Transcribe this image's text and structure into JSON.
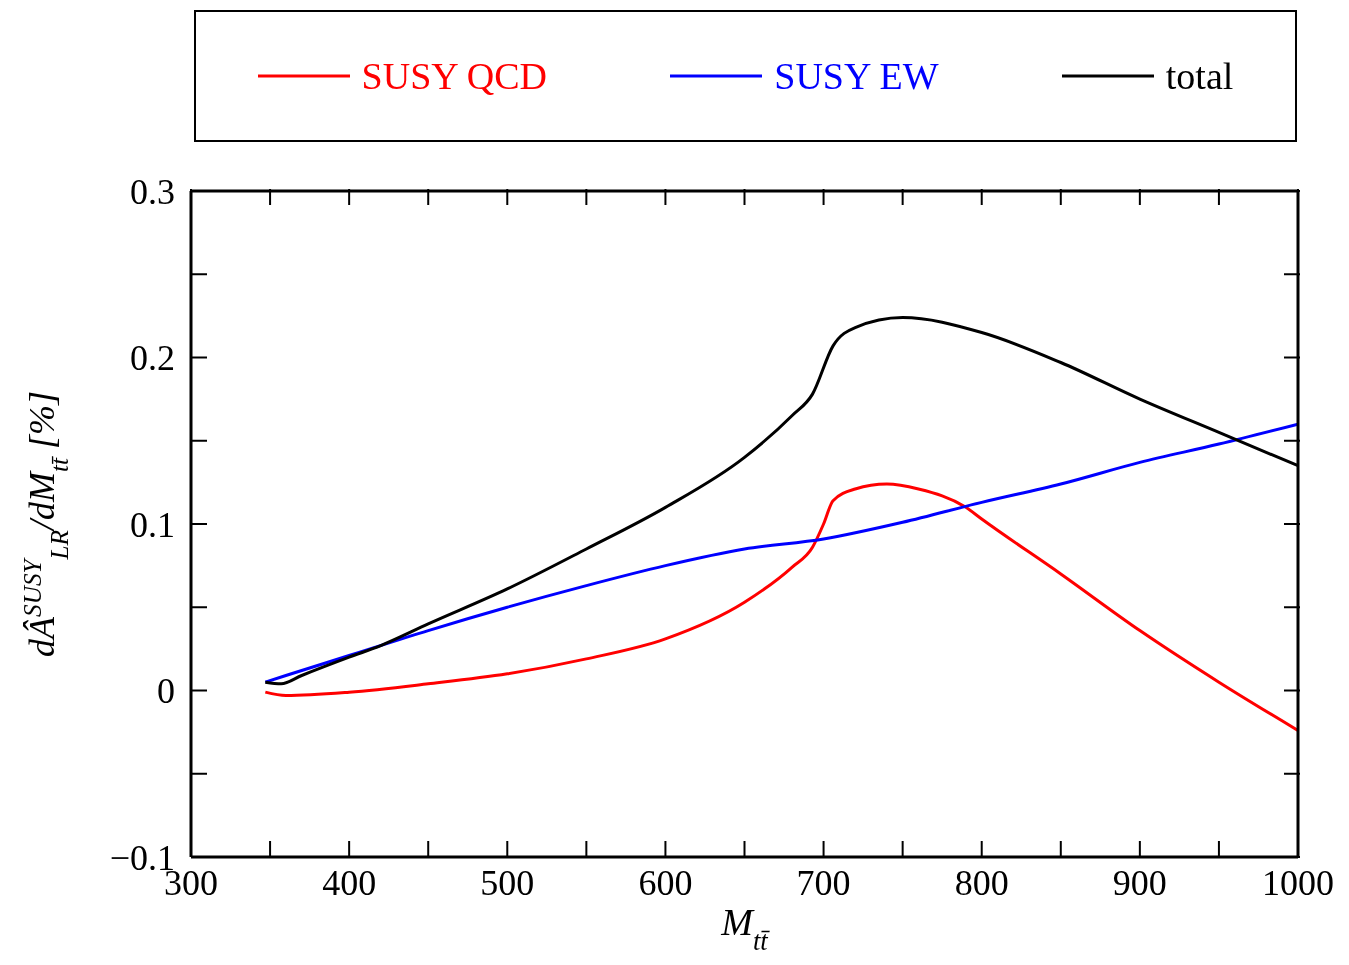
{
  "chart_data": {
    "type": "line",
    "xlabel": "M$_{tt̄}$",
    "ylabel": "dÂ$^{SUSY}$$_{LR}$/dM$_{tt̄}$ [%]",
    "xlim": [
      300,
      1000
    ],
    "xticks": [
      300,
      {
        "value": 350,
        "label": null
      },
      400,
      {
        "value": 450,
        "label": null
      },
      500,
      {
        "value": 550,
        "label": null
      },
      600,
      {
        "value": 650,
        "label": null
      },
      700,
      {
        "value": 750,
        "label": null
      },
      800,
      {
        "value": 850,
        "label": null
      },
      900,
      {
        "value": 950,
        "label": null
      },
      1000
    ],
    "ylim": [
      -0.1,
      0.3
    ],
    "yticks": [
      {
        "value": -0.1,
        "label": "−0.1"
      },
      {
        "value": -0.05,
        "label": null
      },
      0,
      {
        "value": 0.05,
        "label": null
      },
      0.1,
      {
        "value": 0.15,
        "label": null
      },
      0.2,
      {
        "value": 0.25,
        "label": null
      },
      0.3
    ],
    "legend": "top",
    "line_style": "solid",
    "series": [
      {
        "name": "SUSY QCD",
        "color": "#ff0000",
        "x": [
          347,
          360,
          400,
          450,
          500,
          550,
          600,
          650,
          680,
          693,
          700,
          706,
          720,
          740,
          760,
          790,
          800,
          850,
          900,
          950,
          1000
        ],
        "values": [
          -0.001,
          -0.003,
          -0.001,
          0.004,
          0.01,
          0.019,
          0.031,
          0.053,
          0.074,
          0.086,
          0.1,
          0.114,
          0.121,
          0.124,
          0.121,
          0.11,
          0.103,
          0.07,
          0.036,
          0.005,
          -0.024
        ]
      },
      {
        "name": "SUSY EW",
        "color": "#0000ff",
        "x": [
          347,
          360,
          400,
          450,
          500,
          550,
          600,
          650,
          700,
          750,
          800,
          850,
          900,
          950,
          1000
        ],
        "values": [
          0.005,
          0.009,
          0.021,
          0.036,
          0.05,
          0.063,
          0.075,
          0.085,
          0.091,
          0.101,
          0.113,
          0.124,
          0.137,
          0.148,
          0.16
        ]
      },
      {
        "name": "total",
        "color": "#000000",
        "x": [
          347,
          357,
          370,
          400,
          420,
          450,
          500,
          550,
          600,
          650,
          680,
          693,
          706,
          720,
          750,
          800,
          850,
          900,
          950,
          1000
        ],
        "values": [
          0.005,
          0.004,
          0.009,
          0.02,
          0.027,
          0.04,
          0.061,
          0.085,
          0.11,
          0.14,
          0.165,
          0.178,
          0.207,
          0.218,
          0.224,
          0.215,
          0.197,
          0.175,
          0.155,
          0.135
        ]
      }
    ]
  }
}
